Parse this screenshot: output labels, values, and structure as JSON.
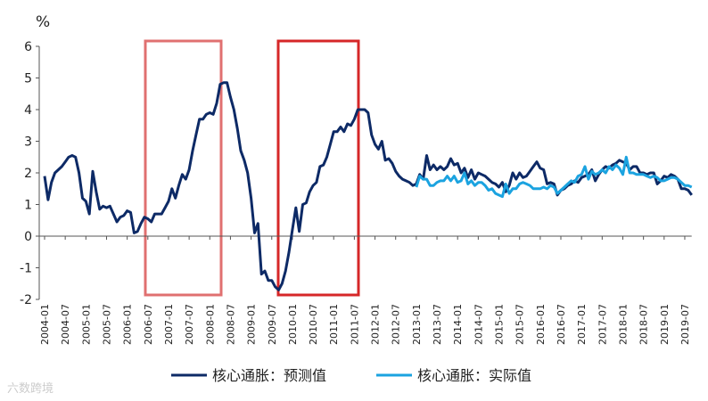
{
  "chart_data": {
    "type": "line",
    "y_label": "%",
    "watermark": "六数跨境",
    "categories": [
      "2004-01",
      null,
      null,
      null,
      null,
      null,
      "2004-07",
      null,
      null,
      null,
      null,
      null,
      "2005-01",
      null,
      null,
      null,
      null,
      null,
      "2005-07",
      null,
      null,
      null,
      null,
      null,
      "2006-01",
      null,
      null,
      null,
      null,
      null,
      "2006-07",
      null,
      null,
      null,
      null,
      null,
      "2007-01",
      null,
      null,
      null,
      null,
      null,
      "2007-07",
      null,
      null,
      null,
      null,
      null,
      "2008-01",
      null,
      null,
      null,
      null,
      null,
      "2008-07",
      null,
      null,
      null,
      null,
      null,
      "2009-01",
      null,
      null,
      null,
      null,
      null,
      "2009-07",
      null,
      null,
      null,
      null,
      null,
      "2010-01",
      null,
      null,
      null,
      null,
      null,
      "2010-07",
      null,
      null,
      null,
      null,
      null,
      "2011-01",
      null,
      null,
      null,
      null,
      null,
      "2011-07",
      null,
      null,
      null,
      null,
      null,
      "2012-01",
      null,
      null,
      null,
      null,
      null,
      "2012-07",
      null,
      null,
      null,
      null,
      null,
      "2013-01",
      null,
      null,
      null,
      null,
      null,
      "2013-07",
      null,
      null,
      null,
      null,
      null,
      "2014-01",
      null,
      null,
      null,
      null,
      null,
      "2014-07",
      null,
      null,
      null,
      null,
      null,
      "2015-01",
      null,
      null,
      null,
      null,
      null,
      "2015-07",
      null,
      null,
      null,
      null,
      null,
      "2016-01",
      null,
      null,
      null,
      null,
      null,
      "2016-07",
      null,
      null,
      null,
      null,
      null,
      "2017-01",
      null,
      null,
      null,
      null,
      null,
      "2017-07",
      null,
      null,
      null,
      null,
      null,
      "2018-01",
      null,
      null,
      null,
      null,
      null,
      "2018-07",
      null,
      null,
      null,
      null,
      null,
      "2019-01",
      null,
      null,
      null,
      null,
      null,
      "2019-07",
      null,
      null
    ],
    "series": [
      {
        "name": "核心通胀：预测值",
        "color": "#0d2a66",
        "values": [
          1.9,
          1.15,
          1.7,
          2.0,
          2.1,
          2.2,
          2.35,
          2.5,
          2.55,
          2.5,
          2.0,
          1.2,
          1.1,
          0.7,
          2.05,
          1.4,
          0.85,
          0.95,
          0.9,
          0.95,
          0.7,
          0.45,
          0.6,
          0.65,
          0.8,
          0.75,
          0.1,
          0.15,
          0.4,
          0.6,
          0.55,
          0.45,
          0.7,
          0.7,
          0.7,
          0.9,
          1.1,
          1.5,
          1.2,
          1.6,
          1.95,
          1.8,
          2.1,
          2.7,
          3.2,
          3.7,
          3.7,
          3.85,
          3.9,
          3.85,
          4.2,
          4.8,
          4.85,
          4.85,
          4.4,
          4.0,
          3.4,
          2.7,
          2.4,
          2.0,
          1.2,
          0.1,
          0.4,
          -1.2,
          -1.1,
          -1.4,
          -1.4,
          -1.6,
          -1.7,
          -1.5,
          -1.1,
          -0.5,
          0.2,
          0.9,
          0.15,
          1.0,
          1.05,
          1.4,
          1.6,
          1.7,
          2.2,
          2.25,
          2.5,
          2.9,
          3.3,
          3.3,
          3.45,
          3.3,
          3.55,
          3.5,
          3.7,
          4.0,
          4.0,
          4.0,
          3.9,
          3.2,
          2.9,
          2.75,
          3.0,
          2.4,
          2.45,
          2.3,
          2.05,
          1.9,
          1.8,
          1.75,
          1.7,
          1.6,
          1.65,
          1.95,
          1.8,
          2.55,
          2.1,
          2.25,
          2.1,
          2.2,
          2.1,
          2.2,
          2.45,
          2.25,
          2.3,
          2.0,
          2.15,
          1.85,
          2.1,
          1.8,
          2.0,
          1.95,
          1.9,
          1.8,
          1.7,
          1.65,
          1.55,
          1.7,
          1.4,
          1.6,
          2.0,
          1.8,
          2.0,
          1.85,
          1.9,
          2.05,
          2.2,
          2.35,
          2.15,
          2.1,
          1.65,
          1.7,
          1.65,
          1.3,
          1.45,
          1.5,
          1.6,
          1.65,
          1.75,
          1.7,
          1.85,
          1.9,
          1.95,
          2.1,
          1.75,
          1.95,
          2.1,
          2.2,
          2.15,
          2.25,
          2.3,
          2.4,
          2.35,
          2.3,
          2.1,
          2.2,
          2.2,
          2.0,
          2.0,
          1.95,
          2.0,
          2.0,
          1.65,
          1.75,
          1.9,
          1.85,
          1.95,
          1.9,
          1.8,
          1.5,
          1.5,
          1.45,
          1.3
        ]
      },
      {
        "name": "核心通胀：实际值",
        "color": "#1ba3e0",
        "values": [
          null,
          null,
          null,
          null,
          null,
          null,
          null,
          null,
          null,
          null,
          null,
          null,
          null,
          null,
          null,
          null,
          null,
          null,
          null,
          null,
          null,
          null,
          null,
          null,
          null,
          null,
          null,
          null,
          null,
          null,
          null,
          null,
          null,
          null,
          null,
          null,
          null,
          null,
          null,
          null,
          null,
          null,
          null,
          null,
          null,
          null,
          null,
          null,
          null,
          null,
          null,
          null,
          null,
          null,
          null,
          null,
          null,
          null,
          null,
          null,
          null,
          null,
          null,
          null,
          null,
          null,
          null,
          null,
          null,
          null,
          null,
          null,
          null,
          null,
          null,
          null,
          null,
          null,
          null,
          null,
          null,
          null,
          null,
          null,
          null,
          null,
          null,
          null,
          null,
          null,
          null,
          null,
          null,
          null,
          null,
          null,
          null,
          null,
          null,
          null,
          null,
          null,
          null,
          null,
          null,
          null,
          null,
          null,
          1.55,
          1.9,
          1.8,
          1.8,
          1.6,
          1.6,
          1.7,
          1.75,
          1.75,
          1.9,
          1.75,
          1.9,
          1.7,
          1.75,
          2.0,
          1.65,
          1.75,
          1.6,
          1.7,
          1.7,
          1.6,
          1.45,
          1.5,
          1.35,
          1.3,
          1.25,
          1.65,
          1.35,
          1.5,
          1.5,
          1.65,
          1.7,
          1.65,
          1.6,
          1.5,
          1.5,
          1.5,
          1.55,
          1.5,
          1.6,
          1.55,
          1.35,
          1.45,
          1.55,
          1.65,
          1.75,
          1.7,
          1.9,
          1.95,
          2.2,
          1.8,
          2.05,
          1.95,
          2.0,
          2.1,
          2.0,
          2.2,
          2.1,
          2.25,
          2.15,
          1.95,
          2.5,
          2.0,
          2.0,
          1.95,
          1.95,
          1.95,
          1.9,
          1.85,
          1.9,
          1.85,
          1.75,
          1.75,
          1.8,
          1.85,
          1.85,
          1.8,
          1.7,
          1.6,
          1.6,
          1.55
        ]
      }
    ],
    "ylim": [
      -2,
      6
    ],
    "yticks": [
      -2,
      -1,
      0,
      1,
      2,
      3,
      4,
      5,
      6
    ]
  }
}
